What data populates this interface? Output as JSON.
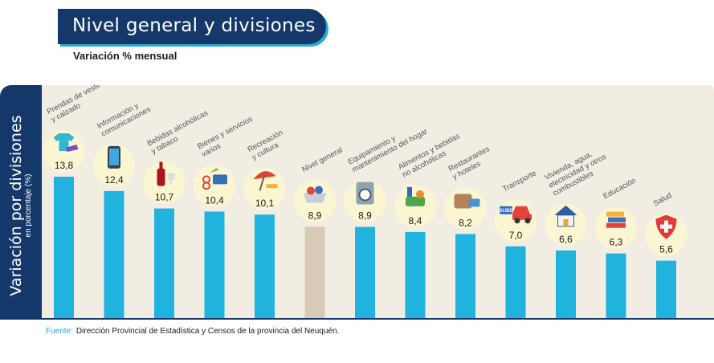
{
  "header": {
    "title": "Nivel general y divisiones",
    "subtitle": "Variación % mensual"
  },
  "side_label": {
    "main": "Variación por divisiones",
    "sub": "en porcentaje (%)"
  },
  "source": {
    "label": "Fuente:",
    "text": "Dirección Provincial de Estadística y Censos de la provincia del Neuquén."
  },
  "colors": {
    "bar": "#1fb3dd",
    "bar_highlight": "#d8cab4",
    "panel": "#15386a",
    "background": "#f2ede3"
  },
  "chart_data": {
    "type": "bar",
    "title": "Nivel general y divisiones",
    "subtitle": "Variación % mensual",
    "ylabel": "Variación por divisiones — en porcentaje (%)",
    "ylim": [
      0,
      16
    ],
    "grid": false,
    "legend": "none",
    "categories": [
      [
        "Prendas de vestir",
        "y calzado"
      ],
      [
        "Información y",
        "comunicaciones"
      ],
      [
        "Bebidas alcohólicas",
        "y tabaco"
      ],
      [
        "Bienes y servicios",
        "varios"
      ],
      [
        "Recreación",
        "y cultura"
      ],
      [
        "Nivel general"
      ],
      [
        "Equipamiento y",
        "mantenimiento del hogar"
      ],
      [
        "Alimentos y bebidas",
        "no alcohólicas"
      ],
      [
        "Restaurantes",
        "y hoteles"
      ],
      [
        "Transporte"
      ],
      [
        "Vivienda, agua,",
        "electricidad y otros",
        "combustibles"
      ],
      [
        "Educación"
      ],
      [
        "Salud"
      ]
    ],
    "values": [
      13.8,
      12.4,
      10.7,
      10.4,
      10.1,
      8.9,
      8.9,
      8.4,
      8.2,
      7.0,
      6.6,
      6.3,
      5.6
    ],
    "value_labels": [
      "13,8",
      "12,4",
      "10,7",
      "10,4",
      "10,1",
      "8,9",
      "8,9",
      "8,4",
      "8,2",
      "7,0",
      "6,6",
      "6,3",
      "5,6"
    ],
    "highlight_index": 5,
    "icons": [
      "tshirt-icon",
      "smartphone-icon",
      "wine-bottle-icon",
      "scissors-card-icon",
      "beach-umbrella-icon",
      "shopping-basket-icon",
      "washing-machine-icon",
      "groceries-icon",
      "suitcase-icon",
      "car-icon",
      "house-icon",
      "books-icon",
      "health-shield-icon"
    ],
    "icon_caption_transport": "SUBE"
  }
}
